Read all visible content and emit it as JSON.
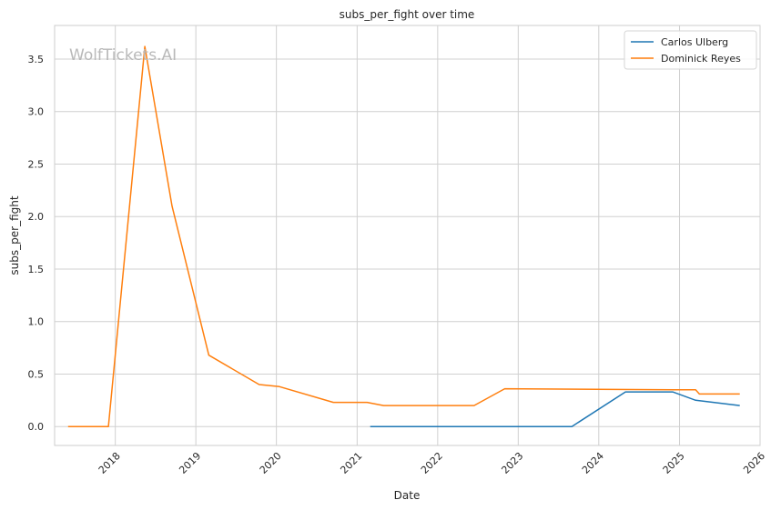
{
  "watermark": "WolfTickets.AI",
  "chart_data": {
    "type": "line",
    "title": "subs_per_fight over time",
    "xlabel": "Date",
    "ylabel": "subs_per_fight",
    "x_ticks": [
      "2018",
      "2019",
      "2020",
      "2021",
      "2022",
      "2023",
      "2024",
      "2025",
      "2026"
    ],
    "y_ticks": [
      "0.0",
      "0.5",
      "1.0",
      "1.5",
      "2.0",
      "2.5",
      "3.0",
      "3.5"
    ],
    "xlim": [
      "2017-04-01",
      "2026-01-01"
    ],
    "ylim": [
      -0.18,
      3.82
    ],
    "grid": true,
    "legend_position": "upper right",
    "series": [
      {
        "name": "Carlos Ulberg",
        "color": "#1f77b4",
        "points": [
          [
            "2021-03-01",
            0.0
          ],
          [
            "2023-09-01",
            0.0
          ],
          [
            "2024-05-01",
            0.33
          ],
          [
            "2024-12-01",
            0.33
          ],
          [
            "2025-03-15",
            0.25
          ],
          [
            "2025-10-01",
            0.2
          ]
        ]
      },
      {
        "name": "Dominick Reyes",
        "color": "#ff7f0e",
        "points": [
          [
            "2017-06-01",
            0.0
          ],
          [
            "2017-12-01",
            0.0
          ],
          [
            "2018-05-15",
            3.62
          ],
          [
            "2018-09-15",
            2.1
          ],
          [
            "2019-03-01",
            0.68
          ],
          [
            "2019-10-15",
            0.4
          ],
          [
            "2020-01-15",
            0.38
          ],
          [
            "2020-09-15",
            0.23
          ],
          [
            "2021-02-15",
            0.23
          ],
          [
            "2021-05-01",
            0.2
          ],
          [
            "2022-06-15",
            0.2
          ],
          [
            "2022-11-01",
            0.36
          ],
          [
            "2024-12-01",
            0.35
          ],
          [
            "2025-03-15",
            0.35
          ],
          [
            "2025-04-01",
            0.31
          ],
          [
            "2025-10-01",
            0.31
          ]
        ]
      }
    ]
  }
}
